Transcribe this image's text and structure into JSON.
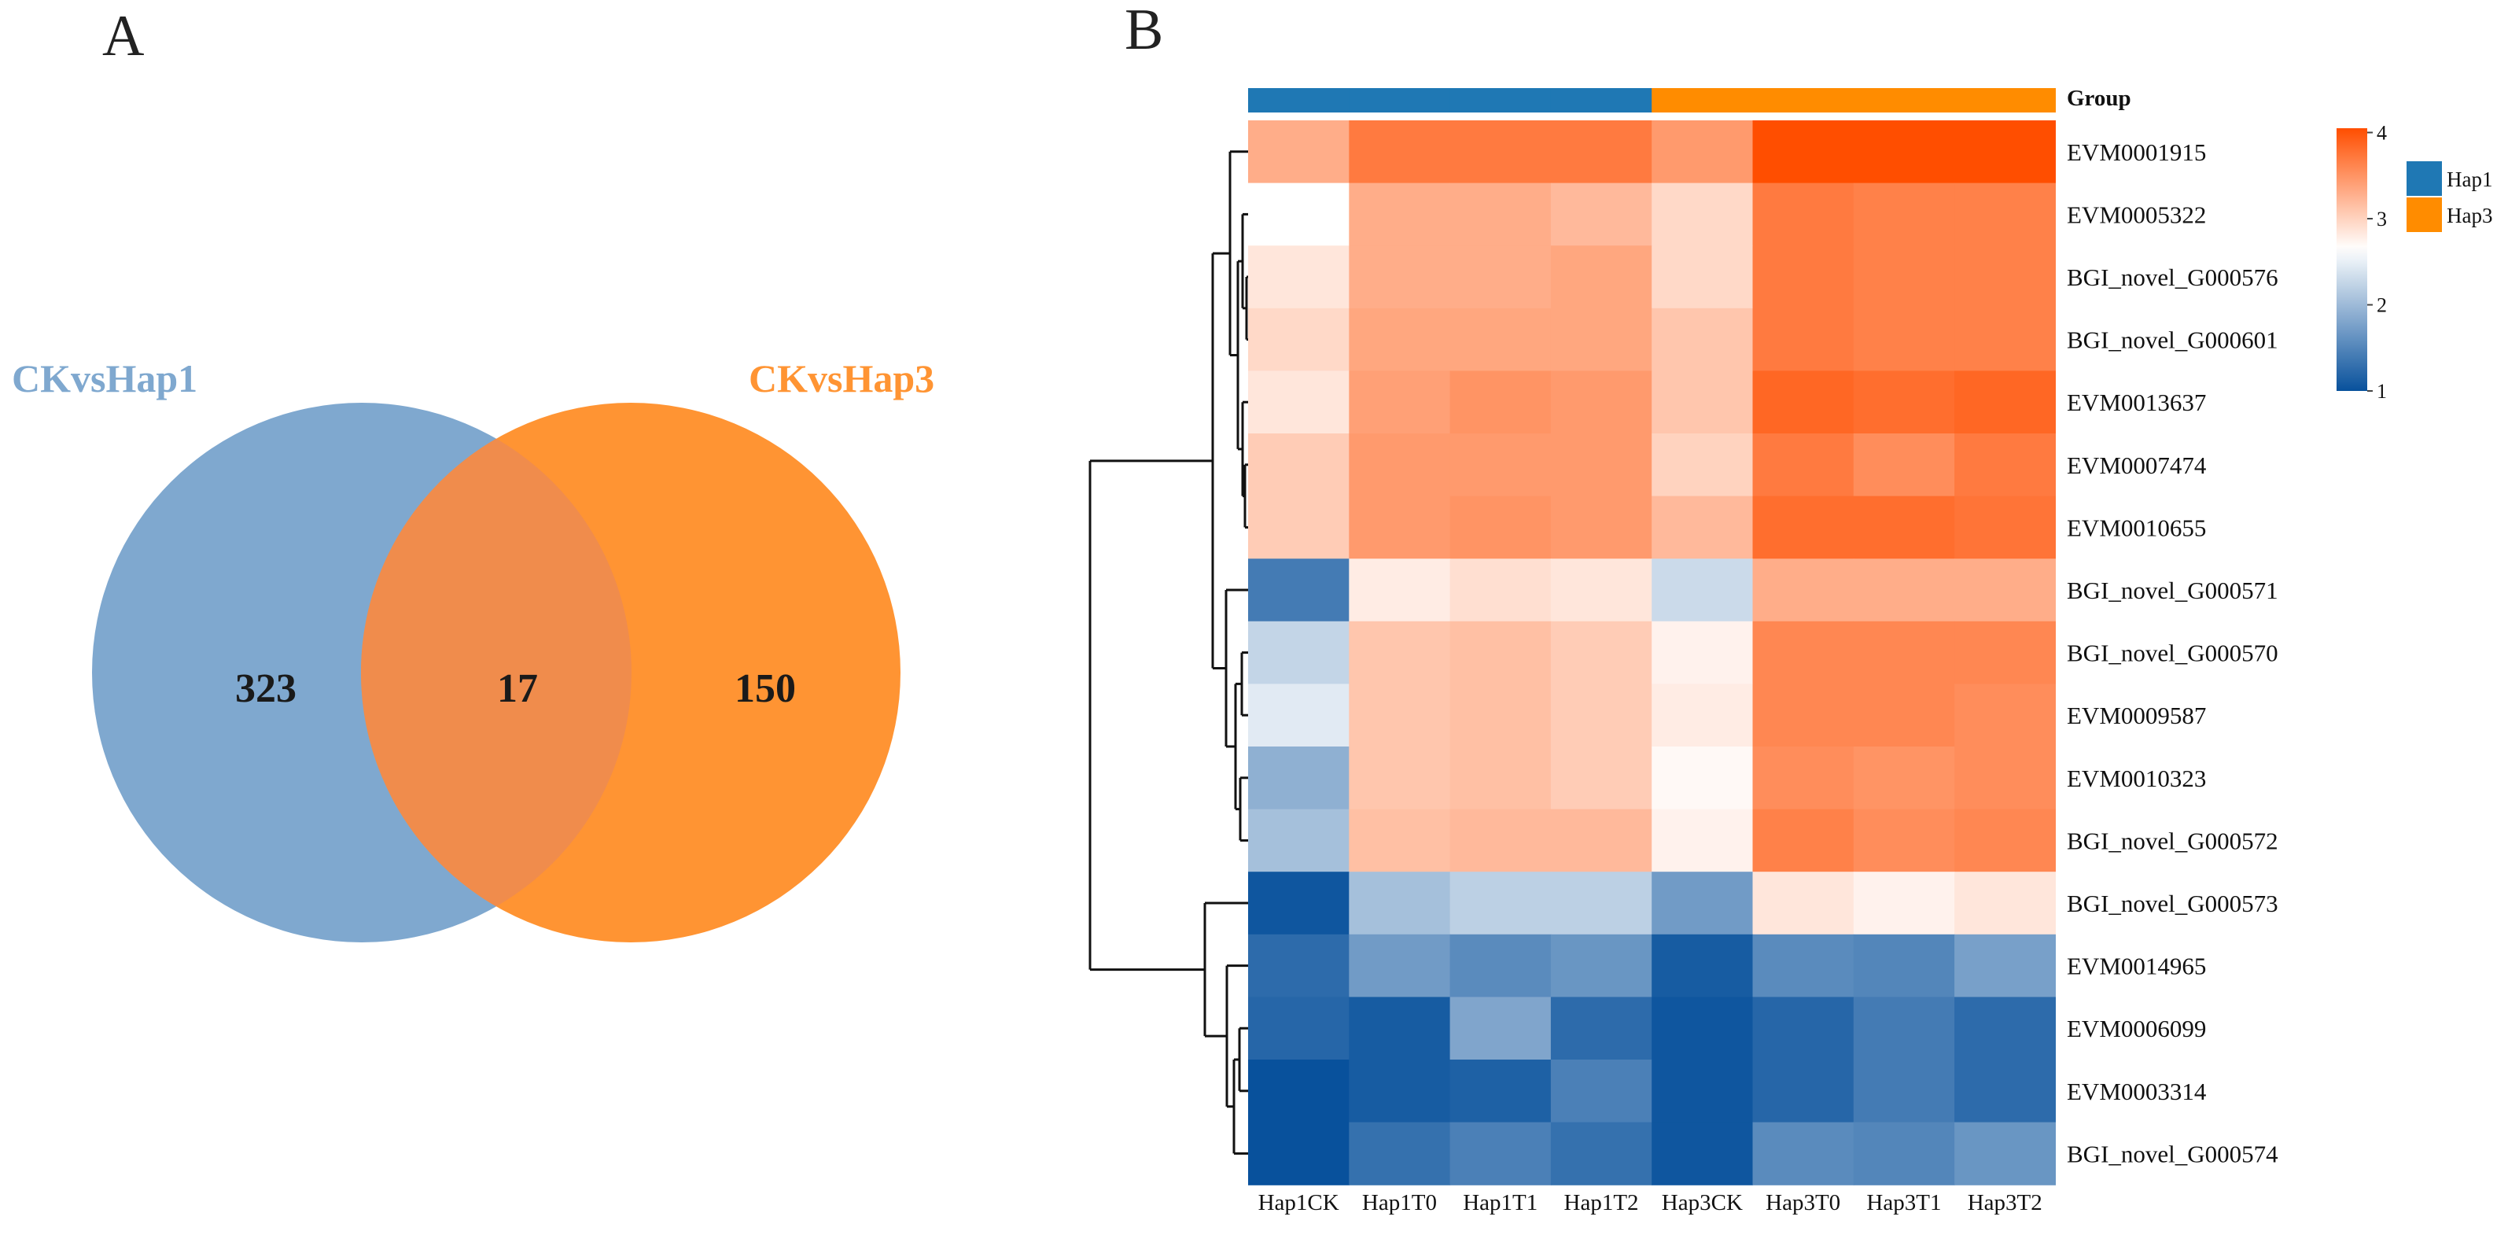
{
  "panel_a": {
    "label": "A",
    "chart_data": {
      "type": "venn",
      "sets": [
        {
          "name": "CKvsHap1",
          "color": "#7FA8CF"
        },
        {
          "name": "CKvsHap3",
          "color": "#FF9433"
        }
      ],
      "only_left": "323",
      "intersection": "17",
      "only_right": "150",
      "overlap_color": "#F08C4C"
    }
  },
  "panel_b": {
    "label": "B",
    "group_title": "Group",
    "chart_data": {
      "type": "heatmap",
      "columns": [
        "Hap1CK",
        "Hap1T0",
        "Hap1T1",
        "Hap1T2",
        "Hap3CK",
        "Hap3T0",
        "Hap3T1",
        "Hap3T2"
      ],
      "column_groups": [
        "Hap1",
        "Hap1",
        "Hap1",
        "Hap1",
        "Hap3",
        "Hap3",
        "Hap3",
        "Hap3"
      ],
      "rows": [
        "EVM0001915",
        "EVM0005322",
        "BGI_novel_G000576",
        "BGI_novel_G000601",
        "EVM0013637",
        "EVM0007474",
        "EVM0010655",
        "BGI_novel_G000571",
        "BGI_novel_G000570",
        "EVM0009587",
        "EVM0010323",
        "BGI_novel_G000572",
        "BGI_novel_G000573",
        "EVM0014965",
        "EVM0006099",
        "EVM0003314",
        "BGI_novel_G000574"
      ],
      "values": [
        [
          3.3,
          3.7,
          3.7,
          3.7,
          3.45,
          4.05,
          4.05,
          4.05
        ],
        [
          2.65,
          3.3,
          3.3,
          3.2,
          2.95,
          3.7,
          3.65,
          3.65
        ],
        [
          2.85,
          3.3,
          3.3,
          3.35,
          2.95,
          3.7,
          3.65,
          3.65
        ],
        [
          2.95,
          3.35,
          3.35,
          3.35,
          3.1,
          3.7,
          3.65,
          3.65
        ],
        [
          2.85,
          3.4,
          3.5,
          3.45,
          3.1,
          3.85,
          3.8,
          3.85
        ],
        [
          3.05,
          3.45,
          3.45,
          3.45,
          3.0,
          3.7,
          3.55,
          3.7
        ],
        [
          3.05,
          3.45,
          3.5,
          3.45,
          3.2,
          3.8,
          3.8,
          3.75
        ],
        [
          1.4,
          2.8,
          2.9,
          2.85,
          2.3,
          3.3,
          3.3,
          3.3
        ],
        [
          2.25,
          3.1,
          3.15,
          3.05,
          2.75,
          3.6,
          3.6,
          3.6
        ],
        [
          2.45,
          3.1,
          3.15,
          3.05,
          2.8,
          3.6,
          3.6,
          3.55
        ],
        [
          1.9,
          3.1,
          3.15,
          3.05,
          2.7,
          3.55,
          3.5,
          3.55
        ],
        [
          2.05,
          3.15,
          3.2,
          3.2,
          2.75,
          3.65,
          3.55,
          3.6
        ],
        [
          1.05,
          2.05,
          2.2,
          2.2,
          1.7,
          2.85,
          2.75,
          2.85
        ],
        [
          1.25,
          1.7,
          1.55,
          1.65,
          1.1,
          1.55,
          1.5,
          1.75
        ],
        [
          1.2,
          1.1,
          1.8,
          1.25,
          1.05,
          1.2,
          1.4,
          1.25
        ],
        [
          1.0,
          1.1,
          1.15,
          1.45,
          1.05,
          1.2,
          1.4,
          1.25
        ],
        [
          1.0,
          1.3,
          1.45,
          1.3,
          1.05,
          1.55,
          1.5,
          1.65
        ]
      ],
      "color_scale": {
        "min": 1,
        "mid": 2.65,
        "max": 4.05,
        "low": "#08519C",
        "mid_color": "#FFFFFF",
        "high": "#FF4E00"
      },
      "legend_ticks": [
        "1",
        "2",
        "3",
        "4"
      ],
      "group_legend": [
        {
          "name": "Hap1",
          "color": "#1F78B4"
        },
        {
          "name": "Hap3",
          "color": "#FF8C00"
        }
      ]
    }
  }
}
